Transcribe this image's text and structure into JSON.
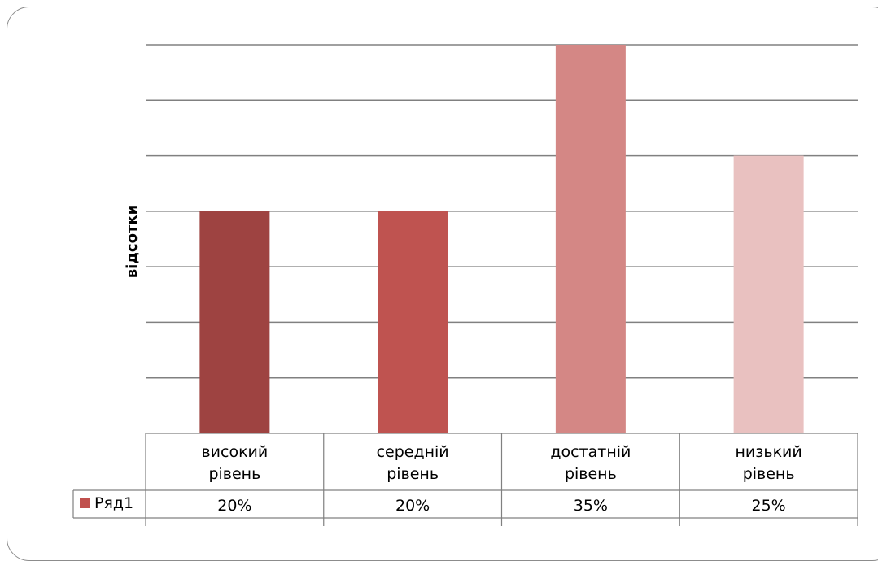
{
  "chart_data": {
    "type": "bar",
    "categories": [
      [
        "високий",
        "рівень"
      ],
      [
        "середній",
        "рівень"
      ],
      [
        "достатній",
        "рівень"
      ],
      [
        "низький",
        "рівень"
      ]
    ],
    "series": [
      {
        "name": "Ряд1",
        "values": [
          20,
          20,
          35,
          25
        ],
        "value_labels": [
          "20%",
          "20%",
          "35%",
          "25%"
        ]
      }
    ],
    "bar_colors": [
      "#9e4341",
      "#bf5350",
      "#d48785",
      "#e9c1c0"
    ],
    "legend_swatch_color": "#c0504d",
    "gridline_color": "#808080",
    "ylabel": "відсотки",
    "ylim": [
      0,
      35
    ],
    "y_gridlines": 7,
    "y_tick_labels_visible": false,
    "legend": "data-table",
    "grid": true
  }
}
